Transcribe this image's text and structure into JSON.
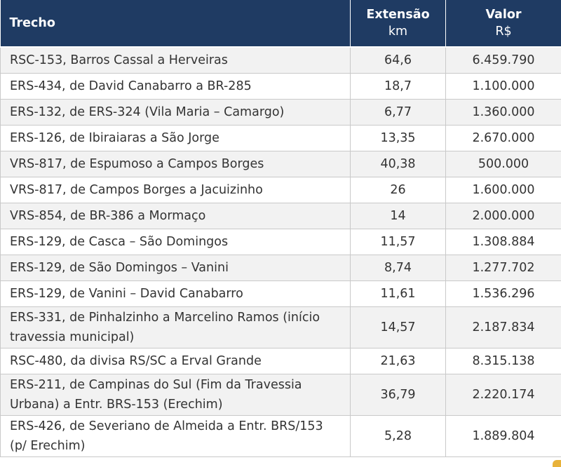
{
  "header": {
    "trecho": "Trecho",
    "extensao": "Extensão",
    "extensao_unit": "km",
    "valor": "Valor",
    "valor_unit": "R$"
  },
  "rows": [
    {
      "trecho": "RSC-153,  Barros Cassal a Herveiras",
      "extensao": "64,6",
      "valor": "6.459.790"
    },
    {
      "trecho": "ERS-434, de David Canabarro a BR-285",
      "extensao": "18,7",
      "valor": "1.100.000"
    },
    {
      "trecho": "ERS-132, de ERS-324 (Vila Maria – Camargo)",
      "extensao": "6,77",
      "valor": "1.360.000"
    },
    {
      "trecho": "ERS-126, de Ibiraiaras a São Jorge",
      "extensao": "13,35",
      "valor": "2.670.000"
    },
    {
      "trecho": "VRS-817, de Espumoso a Campos Borges",
      "extensao": "40,38",
      "valor": "500.000"
    },
    {
      "trecho": "VRS-817, de Campos Borges a Jacuizinho",
      "extensao": "26",
      "valor": "1.600.000"
    },
    {
      "trecho": "VRS-854, de BR-386 a Mormaço",
      "extensao": "14",
      "valor": "2.000.000"
    },
    {
      "trecho": "ERS-129, de Casca – São Domingos",
      "extensao": "11,57",
      "valor": "1.308.884"
    },
    {
      "trecho": "ERS-129, de São Domingos – Vanini",
      "extensao": "8,74",
      "valor": "1.277.702"
    },
    {
      "trecho": "ERS-129, de Vanini – David Canabarro",
      "extensao": "11,61",
      "valor": "1.536.296"
    },
    {
      "trecho": "ERS-331, de Pinhalzinho a Marcelino Ramos (início travessia municipal)",
      "extensao": "14,57",
      "valor": "2.187.834"
    },
    {
      "trecho": "RSC-480, da divisa RS/SC a Erval Grande",
      "extensao": "21,63",
      "valor": "8.315.138"
    },
    {
      "trecho": "ERS-211, de Campinas do Sul (Fim da Travessia Urbana) a Entr. BRS-153 (Erechim)",
      "extensao": "36,79",
      "valor": "2.220.174"
    },
    {
      "trecho": "ERS-426, de Severiano de Almeida a Entr. BRS/153 (p/ Erechim)",
      "extensao": "5,28",
      "valor": "1.889.804"
    }
  ],
  "colors": {
    "header_bg": "#1f3b63",
    "odd_row": "#f2f2f2",
    "border": "#c9c9c9"
  }
}
